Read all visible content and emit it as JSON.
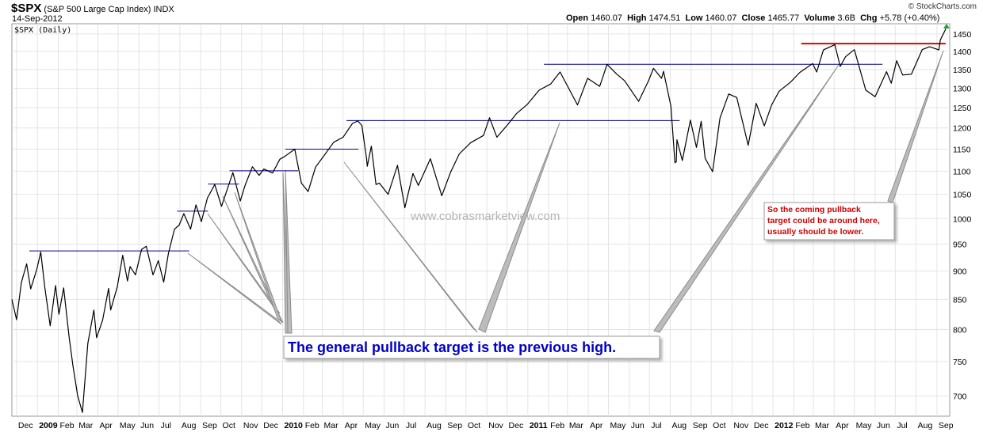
{
  "header": {
    "symbol": "$SPX",
    "name": "(S&P 500 Large Cap Index)",
    "exchange": "INDX",
    "date": "14-Sep-2012",
    "chart_label": "$SPX (Daily)",
    "branding": "© StockCharts.com",
    "quote": {
      "open_label": "Open",
      "open": "1460.07",
      "high_label": "High",
      "high": "1474.51",
      "low_label": "Low",
      "low": "1460.07",
      "close_label": "Close",
      "close": "1465.77",
      "volume_label": "Volume",
      "volume": "3.6B",
      "chg_label": "Chg",
      "chg": "+5.78 (+0.40%)"
    }
  },
  "watermark": "www.cobrasmarketview.com",
  "colors": {
    "price_line": "#000000",
    "previous_high_lines": "#00008b",
    "target_line": "#e00000",
    "callout_text": "#0000cc",
    "note_text": "#cc0000",
    "grid": "#e4e4e4",
    "pointer_lines": "#8c8c8c"
  },
  "annotations": {
    "main_callout": "The general pullback target is the previous high.",
    "note": [
      "So the coming pullback",
      "target could be around here,",
      "usually should be lower."
    ]
  },
  "chart_data": {
    "type": "line",
    "title": "$SPX (Daily)",
    "y_axis": {
      "side": "right",
      "ylim": [
        672,
        1480
      ],
      "scale": "log",
      "ticks": [
        700,
        750,
        800,
        850,
        900,
        950,
        1000,
        1050,
        1100,
        1150,
        1200,
        1250,
        1300,
        1350,
        1400,
        1450
      ]
    },
    "x_axis": {
      "ticks": [
        {
          "x": "2008-12-01",
          "label": "Dec"
        },
        {
          "x": "2009-01-01",
          "label": "2009",
          "bold": true
        },
        {
          "x": "2009-02-01",
          "label": "Feb"
        },
        {
          "x": "2009-03-01",
          "label": "Mar"
        },
        {
          "x": "2009-04-01",
          "label": "Apr"
        },
        {
          "x": "2009-05-01",
          "label": "May"
        },
        {
          "x": "2009-06-01",
          "label": "Jun"
        },
        {
          "x": "2009-07-01",
          "label": "Jul"
        },
        {
          "x": "2009-08-01",
          "label": "Aug"
        },
        {
          "x": "2009-09-01",
          "label": "Sep"
        },
        {
          "x": "2009-10-01",
          "label": "Oct"
        },
        {
          "x": "2009-11-01",
          "label": "Nov"
        },
        {
          "x": "2009-12-01",
          "label": "Dec"
        },
        {
          "x": "2010-01-01",
          "label": "2010",
          "bold": true
        },
        {
          "x": "2010-02-01",
          "label": "Feb"
        },
        {
          "x": "2010-03-01",
          "label": "Mar"
        },
        {
          "x": "2010-04-01",
          "label": "Apr"
        },
        {
          "x": "2010-05-01",
          "label": "May"
        },
        {
          "x": "2010-06-01",
          "label": "Jun"
        },
        {
          "x": "2010-07-01",
          "label": "Jul"
        },
        {
          "x": "2010-08-01",
          "label": "Aug"
        },
        {
          "x": "2010-09-01",
          "label": "Sep"
        },
        {
          "x": "2010-10-01",
          "label": "Oct"
        },
        {
          "x": "2010-11-01",
          "label": "Nov"
        },
        {
          "x": "2010-12-01",
          "label": "Dec"
        },
        {
          "x": "2011-01-01",
          "label": "2011",
          "bold": true
        },
        {
          "x": "2011-02-01",
          "label": "Feb"
        },
        {
          "x": "2011-03-01",
          "label": "Mar"
        },
        {
          "x": "2011-04-01",
          "label": "Apr"
        },
        {
          "x": "2011-05-01",
          "label": "May"
        },
        {
          "x": "2011-06-01",
          "label": "Jun"
        },
        {
          "x": "2011-07-01",
          "label": "Jul"
        },
        {
          "x": "2011-08-01",
          "label": "Aug"
        },
        {
          "x": "2011-09-01",
          "label": "Sep"
        },
        {
          "x": "2011-10-01",
          "label": "Oct"
        },
        {
          "x": "2011-11-01",
          "label": "Nov"
        },
        {
          "x": "2011-12-01",
          "label": "Dec"
        },
        {
          "x": "2012-01-01",
          "label": "2012",
          "bold": true
        },
        {
          "x": "2012-02-01",
          "label": "Feb"
        },
        {
          "x": "2012-03-01",
          "label": "Mar"
        },
        {
          "x": "2012-04-01",
          "label": "Apr"
        },
        {
          "x": "2012-05-01",
          "label": "May"
        },
        {
          "x": "2012-06-01",
          "label": "Jun"
        },
        {
          "x": "2012-07-01",
          "label": "Jul"
        },
        {
          "x": "2012-08-01",
          "label": "Aug"
        },
        {
          "x": "2012-09-01",
          "label": "Sep"
        }
      ],
      "xlim": [
        "2008-11-24",
        "2012-09-20"
      ]
    },
    "grid": true,
    "series": [
      {
        "points": [
          [
            "2008-11-24",
            850
          ],
          [
            "2008-12-01",
            816
          ],
          [
            "2008-12-08",
            879
          ],
          [
            "2008-12-16",
            913
          ],
          [
            "2008-12-22",
            868
          ],
          [
            "2008-12-31",
            903
          ],
          [
            "2009-01-06",
            935
          ],
          [
            "2009-01-12",
            871
          ],
          [
            "2009-01-20",
            806
          ],
          [
            "2009-01-28",
            874
          ],
          [
            "2009-02-02",
            825
          ],
          [
            "2009-02-09",
            870
          ],
          [
            "2009-02-17",
            790
          ],
          [
            "2009-02-23",
            743
          ],
          [
            "2009-03-02",
            700
          ],
          [
            "2009-03-09",
            677
          ],
          [
            "2009-03-17",
            778
          ],
          [
            "2009-03-26",
            832
          ],
          [
            "2009-03-30",
            787
          ],
          [
            "2009-04-08",
            815
          ],
          [
            "2009-04-17",
            869
          ],
          [
            "2009-04-20",
            832
          ],
          [
            "2009-04-30",
            872
          ],
          [
            "2009-05-08",
            929
          ],
          [
            "2009-05-15",
            882
          ],
          [
            "2009-05-19",
            908
          ],
          [
            "2009-05-27",
            893
          ],
          [
            "2009-06-05",
            940
          ],
          [
            "2009-06-12",
            946
          ],
          [
            "2009-06-22",
            893
          ],
          [
            "2009-06-30",
            919
          ],
          [
            "2009-07-08",
            880
          ],
          [
            "2009-07-15",
            932
          ],
          [
            "2009-07-24",
            979
          ],
          [
            "2009-07-31",
            987
          ],
          [
            "2009-08-07",
            1010
          ],
          [
            "2009-08-17",
            979
          ],
          [
            "2009-08-25",
            1028
          ],
          [
            "2009-09-02",
            994
          ],
          [
            "2009-09-11",
            1042
          ],
          [
            "2009-09-22",
            1071
          ],
          [
            "2009-10-02",
            1025
          ],
          [
            "2009-10-19",
            1097
          ],
          [
            "2009-10-30",
            1036
          ],
          [
            "2009-11-06",
            1069
          ],
          [
            "2009-11-17",
            1110
          ],
          [
            "2009-11-27",
            1091
          ],
          [
            "2009-12-04",
            1105
          ],
          [
            "2009-12-17",
            1096
          ],
          [
            "2009-12-28",
            1127
          ],
          [
            "2010-01-04",
            1133
          ],
          [
            "2010-01-19",
            1150
          ],
          [
            "2010-01-29",
            1074
          ],
          [
            "2010-02-08",
            1056
          ],
          [
            "2010-02-19",
            1109
          ],
          [
            "2010-03-05",
            1138
          ],
          [
            "2010-03-18",
            1166
          ],
          [
            "2010-04-01",
            1178
          ],
          [
            "2010-04-15",
            1211
          ],
          [
            "2010-04-23",
            1217
          ],
          [
            "2010-04-29",
            1206
          ],
          [
            "2010-05-06",
            1128
          ],
          [
            "2010-05-07",
            1111
          ],
          [
            "2010-05-13",
            1157
          ],
          [
            "2010-05-20",
            1071
          ],
          [
            "2010-05-25",
            1074
          ],
          [
            "2010-06-07",
            1050
          ],
          [
            "2010-06-21",
            1113
          ],
          [
            "2010-07-02",
            1022
          ],
          [
            "2010-07-14",
            1095
          ],
          [
            "2010-07-22",
            1069
          ],
          [
            "2010-08-09",
            1128
          ],
          [
            "2010-08-26",
            1047
          ],
          [
            "2010-09-08",
            1098
          ],
          [
            "2010-09-21",
            1139
          ],
          [
            "2010-10-08",
            1165
          ],
          [
            "2010-10-27",
            1182
          ],
          [
            "2010-11-05",
            1225
          ],
          [
            "2010-11-16",
            1178
          ],
          [
            "2010-12-01",
            1206
          ],
          [
            "2010-12-15",
            1235
          ],
          [
            "2010-12-31",
            1258
          ],
          [
            "2011-01-18",
            1295
          ],
          [
            "2011-02-04",
            1311
          ],
          [
            "2011-02-18",
            1343
          ],
          [
            "2011-03-01",
            1306
          ],
          [
            "2011-03-16",
            1257
          ],
          [
            "2011-03-31",
            1326
          ],
          [
            "2011-04-18",
            1305
          ],
          [
            "2011-04-29",
            1364
          ],
          [
            "2011-05-13",
            1338
          ],
          [
            "2011-05-25",
            1320
          ],
          [
            "2011-06-15",
            1266
          ],
          [
            "2011-06-30",
            1321
          ],
          [
            "2011-07-07",
            1353
          ],
          [
            "2011-07-19",
            1326
          ],
          [
            "2011-07-22",
            1345
          ],
          [
            "2011-08-02",
            1254
          ],
          [
            "2011-08-08",
            1119
          ],
          [
            "2011-08-10",
            1121
          ],
          [
            "2011-08-11",
            1172
          ],
          [
            "2011-08-19",
            1124
          ],
          [
            "2011-08-31",
            1219
          ],
          [
            "2011-09-09",
            1154
          ],
          [
            "2011-09-16",
            1216
          ],
          [
            "2011-09-22",
            1129
          ],
          [
            "2011-10-03",
            1099
          ],
          [
            "2011-10-14",
            1224
          ],
          [
            "2011-10-27",
            1285
          ],
          [
            "2011-11-08",
            1276
          ],
          [
            "2011-11-25",
            1159
          ],
          [
            "2011-12-07",
            1261
          ],
          [
            "2011-12-19",
            1205
          ],
          [
            "2011-12-30",
            1257
          ],
          [
            "2012-01-10",
            1292
          ],
          [
            "2012-01-27",
            1316
          ],
          [
            "2012-02-10",
            1342
          ],
          [
            "2012-02-29",
            1366
          ],
          [
            "2012-03-06",
            1343
          ],
          [
            "2012-03-16",
            1404
          ],
          [
            "2012-04-02",
            1419
          ],
          [
            "2012-04-10",
            1358
          ],
          [
            "2012-04-18",
            1385
          ],
          [
            "2012-05-01",
            1405
          ],
          [
            "2012-05-18",
            1295
          ],
          [
            "2012-06-01",
            1278
          ],
          [
            "2012-06-18",
            1344
          ],
          [
            "2012-06-25",
            1313
          ],
          [
            "2012-07-03",
            1374
          ],
          [
            "2012-07-12",
            1335
          ],
          [
            "2012-07-25",
            1337
          ],
          [
            "2012-08-10",
            1405
          ],
          [
            "2012-08-21",
            1413
          ],
          [
            "2012-09-04",
            1404
          ],
          [
            "2012-09-06",
            1432
          ],
          [
            "2012-09-13",
            1460
          ],
          [
            "2012-09-14",
            1465
          ]
        ]
      }
    ],
    "reference_lines": [
      {
        "y": 937,
        "x0": "2008-12-20",
        "x1": "2009-08-15",
        "color": "previous_high_lines"
      },
      {
        "y": 1015,
        "x0": "2009-07-28",
        "x1": "2009-09-12",
        "color": "previous_high_lines"
      },
      {
        "y": 1072,
        "x0": "2009-09-12",
        "x1": "2009-10-28",
        "color": "previous_high_lines"
      },
      {
        "y": 1101,
        "x0": "2009-10-14",
        "x1": "2010-01-24",
        "color": "previous_high_lines"
      },
      {
        "y": 1150,
        "x0": "2010-01-05",
        "x1": "2010-04-24",
        "color": "previous_high_lines"
      },
      {
        "y": 1218,
        "x0": "2010-04-06",
        "x1": "2011-08-15",
        "color": "previous_high_lines"
      },
      {
        "y": 1364,
        "x0": "2011-01-25",
        "x1": "2012-06-12",
        "color": "previous_high_lines"
      },
      {
        "y": 1422,
        "x0": "2012-02-12",
        "x1": "2012-09-14",
        "color": "target_line"
      }
    ]
  }
}
